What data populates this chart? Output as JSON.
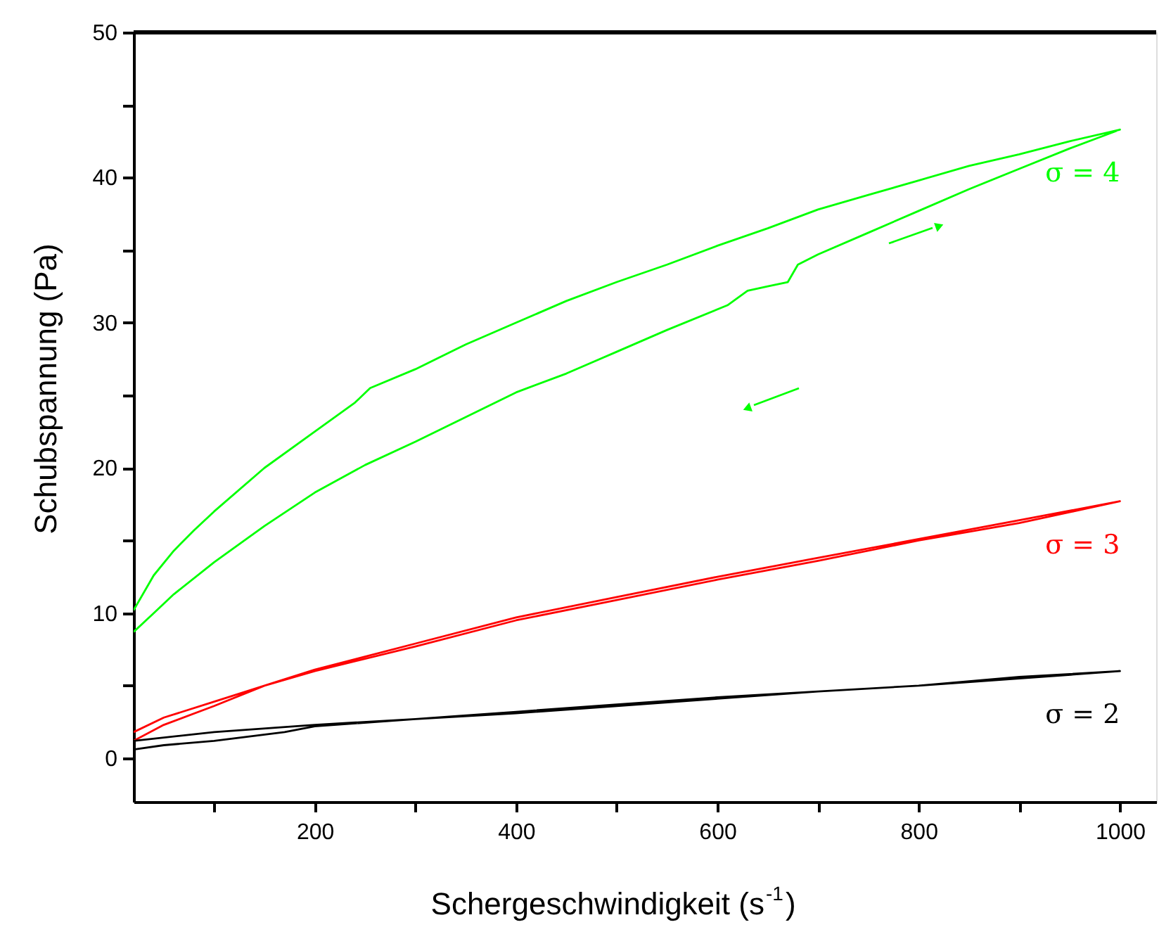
{
  "chart_data": {
    "type": "line",
    "xlabel": "Schergeschwindigkeit (s$^{-1}$)",
    "ylabel": "Schubspannung (Pa)",
    "xlim": [
      20,
      1036
    ],
    "ylim": [
      -3,
      50
    ],
    "xticks": [
      {
        "value": 100,
        "label": null
      },
      200,
      {
        "value": 300,
        "label": null
      },
      400,
      {
        "value": 500,
        "label": null
      },
      600,
      {
        "value": 700,
        "label": null
      },
      800,
      {
        "value": 900,
        "label": null
      },
      1000
    ],
    "yticks": [
      0,
      {
        "value": 5,
        "label": null
      },
      10,
      {
        "value": 15,
        "label": null
      },
      20,
      {
        "value": 25,
        "label": null
      },
      30,
      {
        "value": 35,
        "label": null
      },
      40,
      {
        "value": 45,
        "label": null
      },
      50
    ],
    "grid": false,
    "legend": false,
    "marker": "none",
    "line_style": "solid",
    "series": [
      {
        "name": "σ = 4",
        "color": "#00ff00",
        "x": [
          20,
          40,
          60,
          80,
          100,
          150,
          200,
          240,
          255,
          300,
          350,
          400,
          450,
          500,
          550,
          600,
          650,
          700,
          750,
          800,
          850,
          900,
          950,
          1000,
          950,
          900,
          850,
          800,
          750,
          700,
          680,
          670,
          650,
          630,
          610,
          550,
          500,
          450,
          400,
          350,
          300,
          250,
          200,
          150,
          100,
          60,
          40,
          20
        ],
        "values": [
          10.2,
          12.6,
          14.3,
          15.7,
          17,
          20,
          22.5,
          24.5,
          25.5,
          26.8,
          28.5,
          30,
          31.5,
          32.8,
          34,
          35.3,
          36.5,
          37.8,
          38.8,
          39.8,
          40.8,
          41.6,
          42.5,
          43.3,
          42,
          40.6,
          39.2,
          37.7,
          36.2,
          34.7,
          34,
          32.8,
          32.5,
          32.2,
          31.2,
          29.5,
          28,
          26.5,
          25.2,
          23.5,
          21.8,
          20.2,
          18.3,
          16,
          13.5,
          11.3,
          10,
          8.7
        ]
      },
      {
        "name": "σ = 3",
        "color": "#ff0000",
        "x": [
          20,
          50,
          100,
          150,
          200,
          300,
          400,
          500,
          600,
          700,
          800,
          900,
          1000,
          900,
          800,
          700,
          600,
          500,
          400,
          300,
          200,
          150,
          100,
          50,
          20
        ],
        "values": [
          1.8,
          2.8,
          3.9,
          5,
          6.1,
          7.9,
          9.7,
          11.1,
          12.5,
          13.8,
          15.1,
          16.4,
          17.7,
          16.2,
          15,
          13.6,
          12.3,
          10.9,
          9.5,
          7.7,
          6,
          5,
          3.6,
          2.3,
          1.2
        ]
      },
      {
        "name": "σ = 2",
        "color": "#000000",
        "x": [
          20,
          100,
          200,
          300,
          400,
          500,
          600,
          700,
          800,
          900,
          1000,
          900,
          800,
          700,
          600,
          500,
          400,
          300,
          200,
          170,
          100,
          50,
          20
        ],
        "values": [
          1.2,
          1.8,
          2.3,
          2.7,
          3.2,
          3.7,
          4.2,
          4.6,
          5,
          5.6,
          6,
          5.5,
          5,
          4.6,
          4.1,
          3.6,
          3.1,
          2.7,
          2.2,
          1.8,
          1.2,
          0.9,
          0.6
        ]
      }
    ]
  }
}
